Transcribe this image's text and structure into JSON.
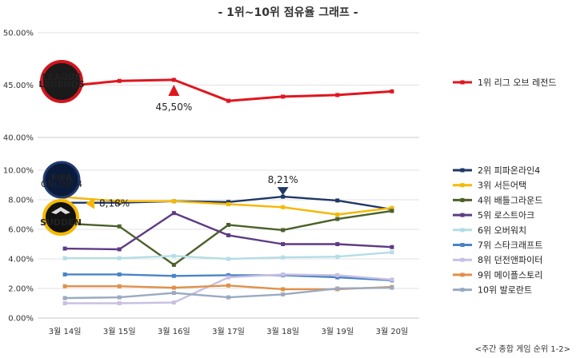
{
  "chart_data": {
    "type": "line",
    "title": "- 1위~10위 점유율 그래프 -",
    "footnote": "<주간 종합 게임 순위 1-2>",
    "categories": [
      "3월 14일",
      "3월 15일",
      "3월 16일",
      "3월 17일",
      "3월 18일",
      "3월 19일",
      "3월 20일"
    ],
    "panels": [
      {
        "name": "top",
        "ylim": [
          40,
          50
        ],
        "yticks": [
          "40.00%",
          "45.00%",
          "50.00%"
        ],
        "grid": true,
        "series": [
          {
            "name": "1위 리그 오브 레전드",
            "color": "#e0161e",
            "values": [
              44.9,
              45.4,
              45.5,
              43.5,
              43.9,
              44.05,
              44.4
            ]
          }
        ],
        "annotations": [
          {
            "label": "45,50%",
            "series": 0,
            "index": 2,
            "marker": "up-triangle",
            "color": "#e0161e"
          }
        ],
        "logos": [
          {
            "icon": "league-of-legends-logo",
            "text": "LEAGUE OF LEGENDS"
          }
        ]
      },
      {
        "name": "bottom",
        "ylim": [
          0,
          10
        ],
        "yticks": [
          "0.00%",
          "2.00%",
          "4.00%",
          "6.00%",
          "8.00%",
          "10.00%"
        ],
        "grid": true,
        "series": [
          {
            "name": "2위 피파온라인4",
            "color": "#1f3864",
            "values": [
              7.8,
              7.8,
              7.9,
              7.85,
              8.21,
              7.95,
              7.35
            ]
          },
          {
            "name": "3위 서든어택",
            "color": "#f5b800",
            "values": [
              8.18,
              7.9,
              7.9,
              7.7,
              7.5,
              7.0,
              7.45
            ]
          },
          {
            "name": "4위 배틀그라운드",
            "color": "#4a6128",
            "values": [
              6.4,
              6.2,
              3.6,
              6.3,
              5.95,
              6.7,
              7.25
            ]
          },
          {
            "name": "5위 로스트아크",
            "color": "#5e3b82",
            "values": [
              4.7,
              4.65,
              7.1,
              5.6,
              5.0,
              5.0,
              4.8
            ]
          },
          {
            "name": "6위 오버워치",
            "color": "#b4dde6",
            "values": [
              4.05,
              4.05,
              4.2,
              4.0,
              4.1,
              4.15,
              4.45
            ]
          },
          {
            "name": "7위 스타크래프트",
            "color": "#4a84c8",
            "values": [
              2.95,
              2.95,
              2.85,
              2.9,
              2.9,
              2.75,
              2.55
            ]
          },
          {
            "name": "8위 던전앤파이터",
            "color": "#c8c0e2",
            "values": [
              1.0,
              1.0,
              1.05,
              2.75,
              2.95,
              2.9,
              2.6
            ]
          },
          {
            "name": "9위 메이플스토리",
            "color": "#e0904a",
            "values": [
              2.15,
              2.15,
              2.05,
              2.2,
              1.95,
              1.95,
              2.1
            ]
          },
          {
            "name": "10위 발로란트",
            "color": "#9aaac2",
            "values": [
              1.35,
              1.4,
              1.7,
              1.4,
              1.6,
              2.0,
              2.05
            ]
          }
        ],
        "annotations": [
          {
            "label": "8,21%",
            "series": 0,
            "index": 4,
            "marker": "down-triangle",
            "color": "#1f3864"
          },
          {
            "label": "8,18%",
            "series": 1,
            "index": 0,
            "marker": "left-triangle",
            "color": "#f5b800"
          }
        ],
        "logos": [
          {
            "icon": "fifa-online-4-logo",
            "text": "FIFA ONLINE 4"
          },
          {
            "icon": "sudden-attack-logo",
            "text": "SUDDEN ATTACK"
          }
        ]
      }
    ]
  }
}
